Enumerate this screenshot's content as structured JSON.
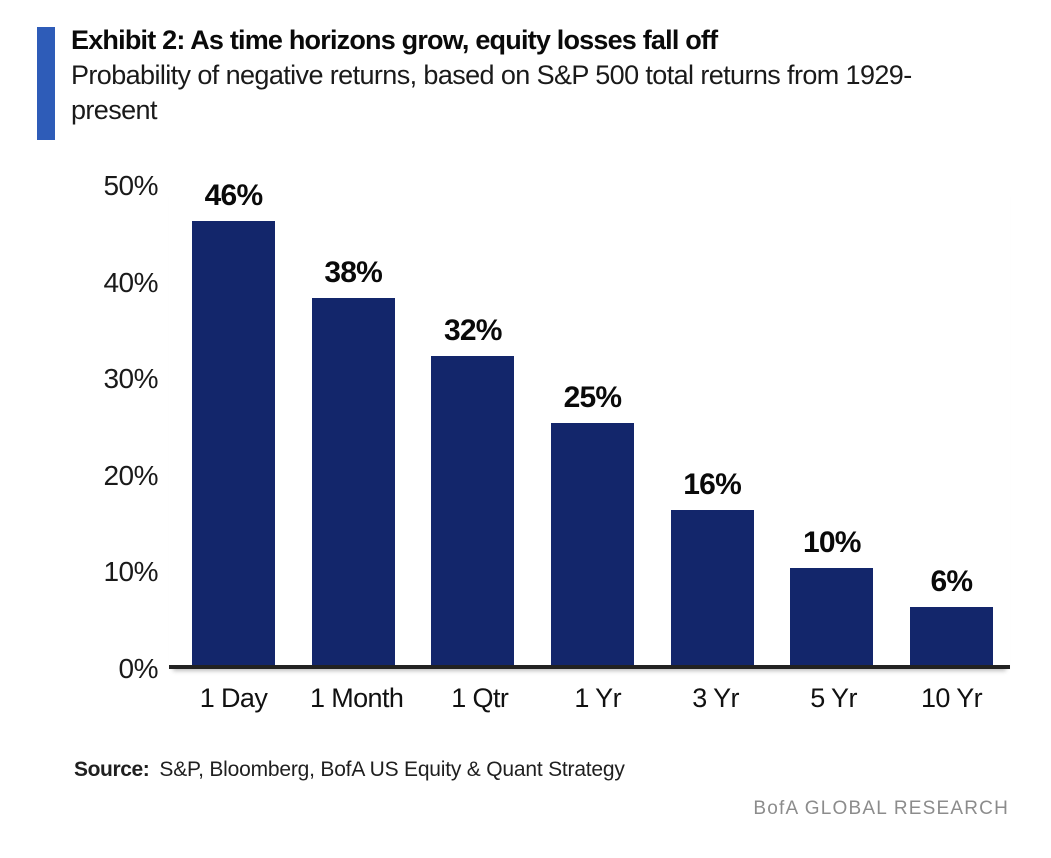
{
  "colors": {
    "accent": "#2e5cb8",
    "bar": "#13266b",
    "axis": "#222222",
    "brand_gray": "#8c8c8c"
  },
  "header": {
    "exhibit_title": "Exhibit 2: As time horizons grow, equity losses fall off",
    "subtitle": "Probability of negative returns, based on S&P 500 total returns from 1929-present"
  },
  "chart_data": {
    "type": "bar",
    "title": "Probability of negative returns, based on S&P 500 total returns from 1929-present",
    "categories": [
      "1 Day",
      "1 Month",
      "1 Qtr",
      "1 Yr",
      "3 Yr",
      "5 Yr",
      "10 Yr"
    ],
    "values": [
      46,
      38,
      32,
      25,
      16,
      10,
      6
    ],
    "value_labels": [
      "46%",
      "38%",
      "32%",
      "25%",
      "16%",
      "10%",
      "6%"
    ],
    "xlabel": "",
    "ylabel": "",
    "ylim": [
      0,
      50
    ],
    "yticks": [
      0,
      10,
      20,
      30,
      40,
      50
    ],
    "ytick_labels": [
      "0%",
      "10%",
      "20%",
      "30%",
      "40%",
      "50%"
    ],
    "grid": false,
    "legend_position": "none",
    "bar_color": "#13266b"
  },
  "footer": {
    "source_label": "Source:",
    "source_text": "S&P, Bloomberg, BofA US Equity & Quant Strategy",
    "brand": "BofA GLOBAL RESEARCH"
  }
}
